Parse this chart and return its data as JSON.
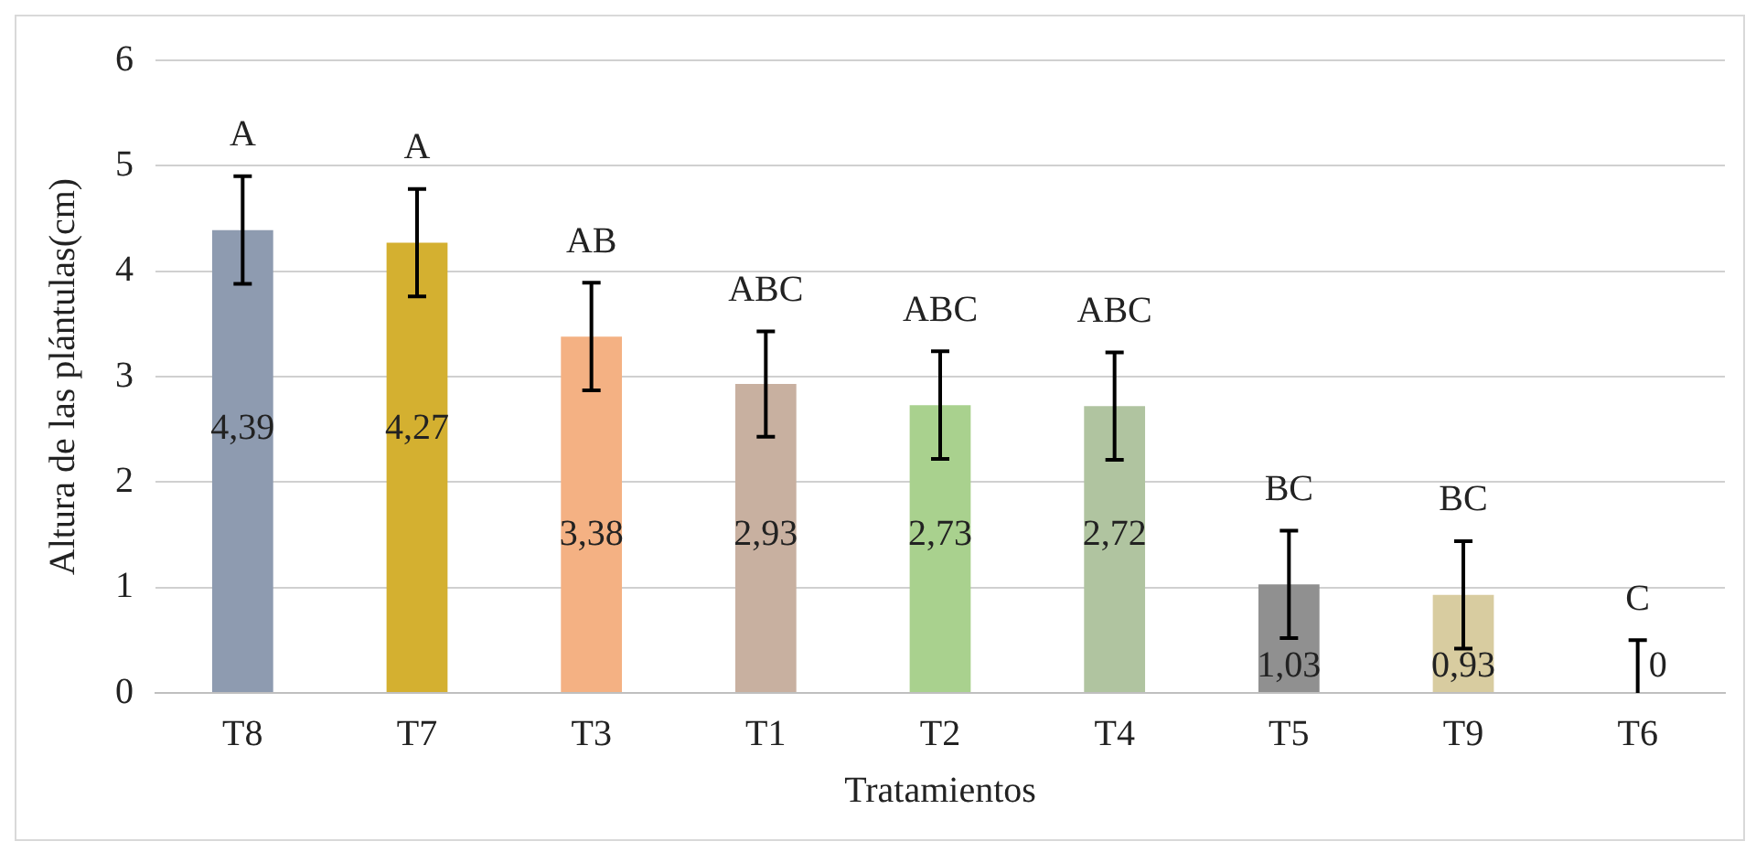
{
  "chart_data": {
    "type": "bar",
    "xlabel": "Tratamientos",
    "ylabel": "Altura de las plántulas(cm)",
    "categories": [
      "T8",
      "T7",
      "T3",
      "T1",
      "T2",
      "T4",
      "T5",
      "T9",
      "T6"
    ],
    "values": [
      4.39,
      4.27,
      3.38,
      2.93,
      2.73,
      2.72,
      1.03,
      0.93,
      0
    ],
    "colors": [
      "#8e9bb0",
      "#d4b030",
      "#f4b183",
      "#c8b0a0",
      "#a9d18e",
      "#b0c4a0",
      "#909090",
      "#d8cca0",
      "#cccccc"
    ],
    "errors": [
      0.51,
      0.51,
      0.51,
      0.5,
      0.51,
      0.51,
      0.51,
      0.51,
      [
        0,
        0.5
      ]
    ],
    "value_labels": [
      "4,39",
      "4,27",
      "3,38",
      "2,93",
      "2,73",
      "2,72",
      "1,03",
      "0,93",
      "0"
    ],
    "ylim": [
      0,
      6
    ],
    "yticks": [
      0,
      1,
      2,
      3,
      4,
      5,
      6
    ],
    "grid": "y",
    "annotations": [
      "A",
      "A",
      "AB",
      "ABC",
      "ABC",
      "ABC",
      "BC",
      "BC",
      "C"
    ]
  }
}
